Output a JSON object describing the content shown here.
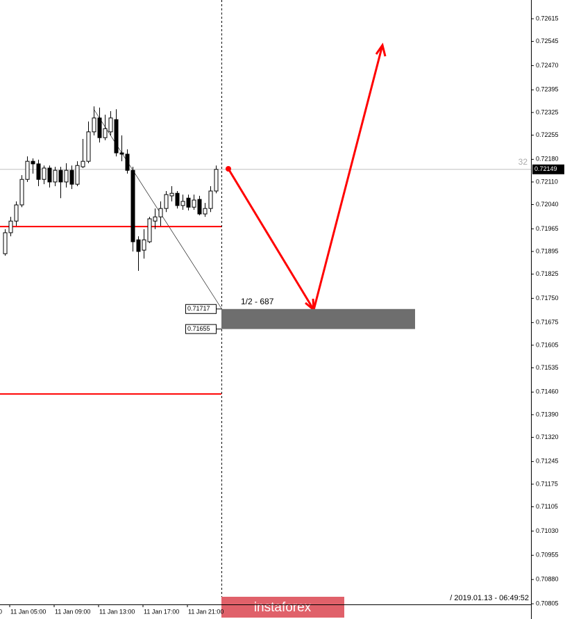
{
  "chart_data": {
    "type": "candlestick",
    "categories": [
      null,
      "11 Jan 05:00",
      null,
      null,
      null,
      null,
      null,
      null,
      null,
      "11 Jan 09:00",
      null,
      null,
      null,
      null,
      null,
      null,
      null,
      "11 Jan 13:00",
      null,
      null,
      null,
      null,
      null,
      null,
      null,
      "11 Jan 17:00",
      null,
      null,
      null,
      null,
      null,
      null,
      null,
      "11 Jan 21:00",
      null,
      null,
      null,
      null,
      null
    ],
    "open": [
      0.71888,
      0.71953,
      0.71989,
      0.72039,
      0.72118,
      0.72174,
      0.72166,
      0.72118,
      0.72153,
      0.7211,
      0.72146,
      0.7211,
      0.72146,
      0.72103,
      0.72157,
      0.72174,
      0.72265,
      0.72308,
      0.72247,
      0.72265,
      0.72303,
      0.722,
      0.72196,
      0.72146,
      0.71931,
      0.71899,
      0.71925,
      0.71989,
      0.72002,
      0.72028,
      0.72067,
      0.72075,
      0.72037,
      0.7206,
      0.72032,
      0.72056,
      0.72011,
      0.72028,
      0.72082
    ],
    "high": [
      0.71964,
      0.72002,
      0.7205,
      0.72131,
      0.72189,
      0.72183,
      0.72179,
      0.72161,
      0.72161,
      0.72157,
      0.72157,
      0.72168,
      0.72161,
      0.72174,
      0.72243,
      0.72297,
      0.72344,
      0.7234,
      0.72318,
      0.72329,
      0.72335,
      0.72254,
      0.72211,
      0.72157,
      0.71942,
      0.71964,
      0.72002,
      0.72028,
      0.7205,
      0.72082,
      0.72097,
      0.72082,
      0.72071,
      0.72071,
      0.72071,
      0.72067,
      0.72045,
      0.72097,
      0.72161
    ],
    "low": [
      0.71882,
      0.71942,
      0.71974,
      0.72032,
      0.7211,
      0.72136,
      0.72097,
      0.72103,
      0.72093,
      0.72097,
      0.7206,
      0.72093,
      0.72088,
      0.72097,
      0.72153,
      0.72168,
      0.72254,
      0.72232,
      0.72239,
      0.72254,
      0.72189,
      0.72174,
      0.72136,
      0.71895,
      0.71835,
      0.71873,
      0.71921,
      0.71964,
      0.71974,
      0.72017,
      0.7205,
      0.72028,
      0.72024,
      0.72022,
      0.72024,
      0.72007,
      0.72002,
      0.72017,
      0.72075
    ],
    "close": [
      0.71953,
      0.71989,
      0.72039,
      0.72118,
      0.72174,
      0.72166,
      0.72118,
      0.72153,
      0.7211,
      0.72146,
      0.7211,
      0.72146,
      0.72103,
      0.72161,
      0.72174,
      0.72265,
      0.72308,
      0.72247,
      0.72275,
      0.72308,
      0.722,
      0.72196,
      0.72146,
      0.71925,
      0.71895,
      0.71931,
      0.71996,
      0.72002,
      0.72028,
      0.72071,
      0.72075,
      0.72037,
      0.7205,
      0.72032,
      0.72054,
      0.72011,
      0.72028,
      0.72082,
      0.72149
    ],
    "up_color": "#ffffff",
    "down_color": "#000000",
    "ylim": [
      0.70803,
      0.72673
    ],
    "yticks": [
      0.72615,
      0.72545,
      {
        "value": 0.7247,
        "label": "0.72470"
      },
      0.72395,
      0.72325,
      0.72255,
      {
        "value": 0.7218,
        "label": "0.72180"
      },
      {
        "value": 0.7211,
        "label": "0.72110"
      },
      {
        "value": 0.7204,
        "label": "0.72040"
      },
      0.71965,
      0.71895,
      0.71825,
      {
        "value": 0.7175,
        "label": "0.71750"
      },
      0.71675,
      0.71605,
      0.71535,
      {
        "value": 0.7146,
        "label": "0.71460"
      },
      {
        "value": 0.7139,
        "label": "0.71390"
      },
      {
        "value": 0.7132,
        "label": "0.71320"
      },
      0.71245,
      0.71175,
      0.71105,
      {
        "value": 0.7103,
        "label": "0.71030"
      },
      0.70955,
      {
        "value": 0.7088,
        "label": "0.70880"
      },
      0.70805
    ],
    "current_price": 0.72149,
    "spread_label": "32",
    "levels": {
      "color": "#ff0000",
      "values": [
        0.71972,
        0.71454
      ]
    },
    "zone": {
      "top": 0.71717,
      "bottom": 0.71655,
      "color": "#6e6e6e",
      "annotation": "1/2 - 687"
    },
    "x_axis_cut_label": "0",
    "timestamp": "/ 2019.01.13 - 06:49:52"
  },
  "watermark": "instaforex"
}
